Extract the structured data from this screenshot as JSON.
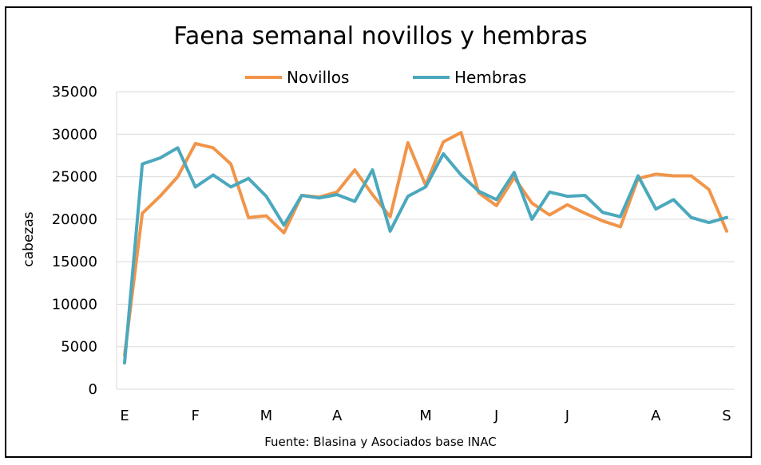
{
  "chart_data": {
    "type": "line",
    "title": "Faena semanal novillos y hembras",
    "ylabel": "cabezas",
    "xlabel": "",
    "source": "Fuente: Blasina y Asociados base INAC",
    "ylim": [
      0,
      35000
    ],
    "yticks": [
      0,
      5000,
      10000,
      15000,
      20000,
      25000,
      30000,
      35000
    ],
    "xticks": [
      {
        "label": "E",
        "index": 0
      },
      {
        "label": "F",
        "index": 4
      },
      {
        "label": "M",
        "index": 8
      },
      {
        "label": "A",
        "index": 12
      },
      {
        "label": "M",
        "index": 17
      },
      {
        "label": "J",
        "index": 21
      },
      {
        "label": "J",
        "index": 25
      },
      {
        "label": "A",
        "index": 30
      },
      {
        "label": "S",
        "index": 34
      }
    ],
    "grid": true,
    "legend_position": "top",
    "series": [
      {
        "name": "Novillos",
        "color": "#F0954A",
        "values": [
          4000,
          20700,
          22700,
          25000,
          28900,
          28400,
          26500,
          20200,
          20400,
          18400,
          22800,
          22600,
          23200,
          25800,
          22900,
          20300,
          29000,
          24000,
          29100,
          30200,
          23100,
          21600,
          24900,
          21900,
          20500,
          21700,
          20700,
          19800,
          19100,
          24800,
          25300,
          25100,
          25100,
          23500,
          18600
        ]
      },
      {
        "name": "Hembras",
        "color": "#4BA8BD",
        "values": [
          3100,
          26500,
          27200,
          28400,
          23800,
          25200,
          23800,
          24800,
          22700,
          19300,
          22800,
          22500,
          22900,
          22100,
          25800,
          18600,
          22700,
          23800,
          27700,
          25200,
          23300,
          22300,
          25500,
          20000,
          23200,
          22700,
          22800,
          20800,
          20300,
          25100,
          21200,
          22300,
          20200,
          19600,
          20200
        ]
      }
    ]
  }
}
